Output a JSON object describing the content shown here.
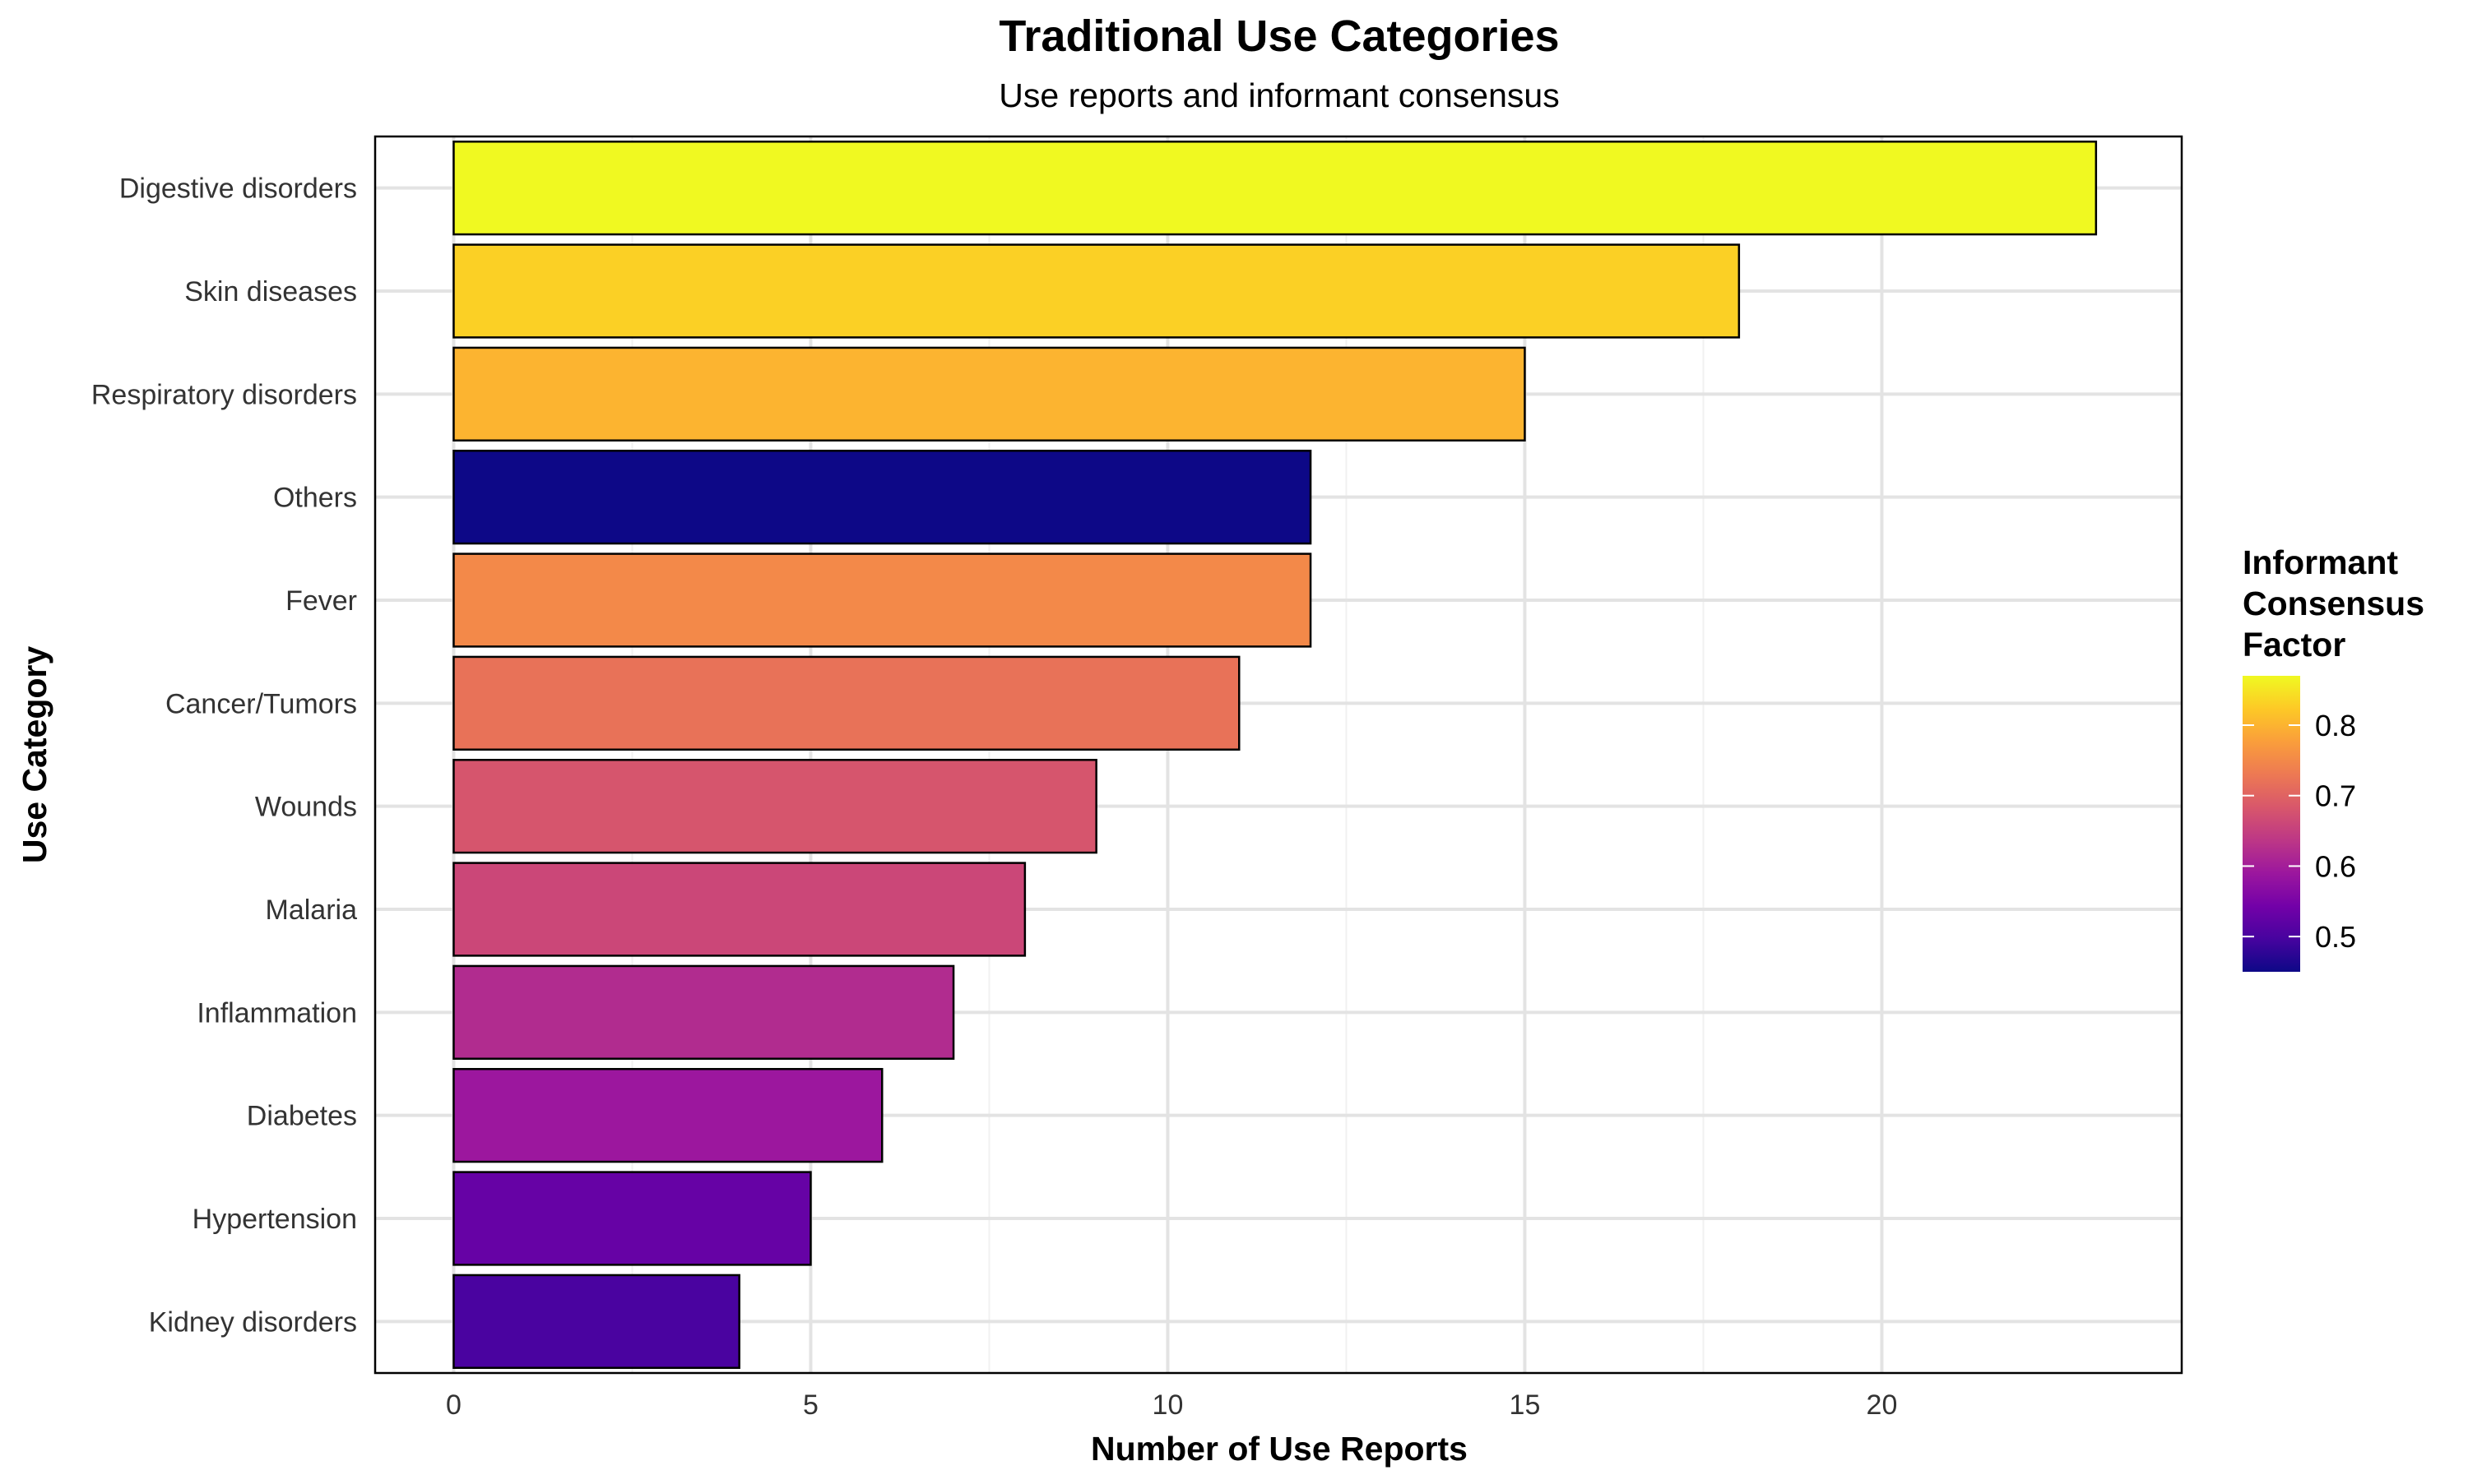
{
  "chart_data": {
    "type": "bar",
    "orientation": "horizontal",
    "title": "Traditional Use Categories",
    "subtitle": "Use reports and informant consensus",
    "xlabel": "Number of Use Reports",
    "ylabel": "Use Category",
    "xlim": [
      -1.1,
      24.2
    ],
    "x_ticks": [
      0,
      5,
      10,
      15,
      20
    ],
    "grid": true,
    "legend_position": "right",
    "categories": [
      "Digestive disorders",
      "Skin diseases",
      "Respiratory disorders",
      "Others",
      "Fever",
      "Cancer/Tumors",
      "Wounds",
      "Malaria",
      "Inflammation",
      "Diabetes",
      "Hypertension",
      "Kidney disorders"
    ],
    "values": [
      23,
      18,
      15,
      12,
      12,
      11,
      9,
      8,
      7,
      6,
      5,
      4
    ],
    "icf": [
      0.87,
      0.83,
      0.8,
      0.45,
      0.75,
      0.72,
      0.68,
      0.66,
      0.62,
      0.59,
      0.53,
      0.5
    ],
    "color_scale": {
      "title": [
        "Informant",
        "Consensus",
        "Factor"
      ],
      "min": 0.45,
      "max": 0.87,
      "ticks": [
        0.5,
        0.6,
        0.7,
        0.8
      ],
      "palette": [
        "#0D0887",
        "#47039F",
        "#7301A8",
        "#9C179E",
        "#BD3786",
        "#D8576B",
        "#ED7953",
        "#FA9E3B",
        "#FDC926",
        "#F0F921"
      ]
    }
  }
}
